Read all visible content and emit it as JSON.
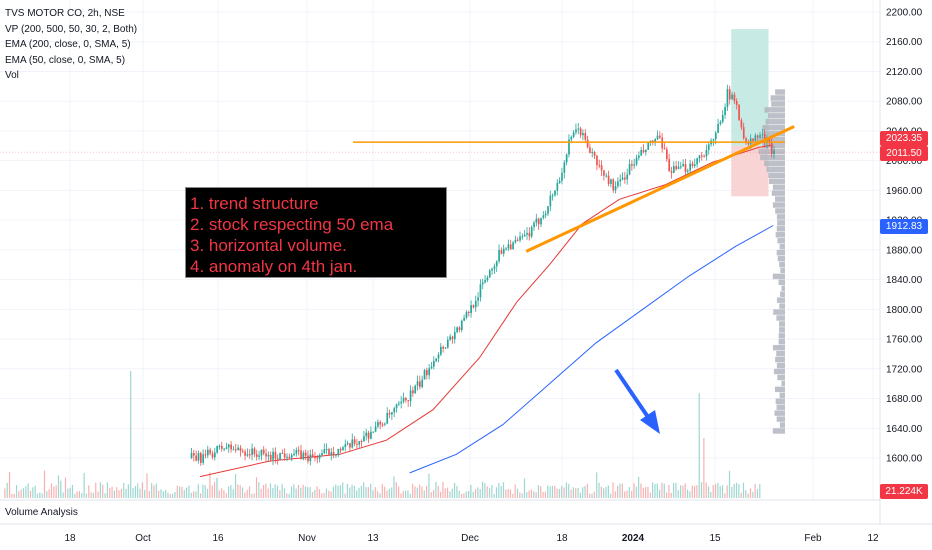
{
  "legend": {
    "symbol": "TVS MOTOR CO, 2h, NSE",
    "vp": "VP (200, 500, 50, 30, 2, Both)",
    "ema200": "EMA (200, close, 0, SMA, 5)",
    "ema50": "EMA (50, close, 0, SMA, 5)",
    "vol": "Vol"
  },
  "annotation": {
    "lines": [
      "1. trend structure",
      "2. stock respecting 50 ema",
      "3. horizontal volume.",
      "4. anomaly on 4th jan."
    ]
  },
  "panes": {
    "volume_label": "Volume Analysis"
  },
  "price_tags": {
    "last_high": "2023.35",
    "last_close": "2011.50",
    "ema200": "1912.83",
    "volume": "21.224K"
  },
  "colors": {
    "up": "#26a69a",
    "down": "#ef5350",
    "ema50": "#e53935",
    "ema200": "#2962ff",
    "trendline": "#ff9800",
    "profile": "#b2b5be",
    "arrow": "#2962ff",
    "tp_zone": "#b9e5dd",
    "sl_zone": "#f8c9cb",
    "tag_green": "#f23645"
  },
  "chart_data": {
    "type": "candlestick",
    "symbol": "TVS MOTOR CO",
    "interval": "2h",
    "exchange": "NSE",
    "y_ticks": [
      1600,
      1640,
      1680,
      1720,
      1760,
      1800,
      1840,
      1880,
      1920,
      1960,
      2000,
      2040,
      2080,
      2120,
      2160,
      2200
    ],
    "ylim": [
      1580,
      2210
    ],
    "x_ticks": [
      "18",
      "Oct",
      "16",
      "Nov",
      "13",
      "Dec",
      "18",
      "2024",
      "15",
      "Feb",
      "12"
    ],
    "price_path": [
      {
        "bar": 0,
        "price": 1600
      },
      {
        "bar": 10,
        "price": 1615
      },
      {
        "bar": 20,
        "price": 1608
      },
      {
        "bar": 30,
        "price": 1602
      },
      {
        "bar": 38,
        "price": 1607
      },
      {
        "bar": 48,
        "price": 1600
      },
      {
        "bar": 56,
        "price": 1610
      },
      {
        "bar": 62,
        "price": 1612
      },
      {
        "bar": 70,
        "price": 1628
      },
      {
        "bar": 78,
        "price": 1648
      },
      {
        "bar": 86,
        "price": 1672
      },
      {
        "bar": 94,
        "price": 1700
      },
      {
        "bar": 100,
        "price": 1735
      },
      {
        "bar": 106,
        "price": 1758
      },
      {
        "bar": 112,
        "price": 1780
      },
      {
        "bar": 118,
        "price": 1815
      },
      {
        "bar": 124,
        "price": 1852
      },
      {
        "bar": 130,
        "price": 1885
      },
      {
        "bar": 136,
        "price": 1890
      },
      {
        "bar": 142,
        "price": 1905
      },
      {
        "bar": 148,
        "price": 1935
      },
      {
        "bar": 154,
        "price": 1975
      },
      {
        "bar": 158,
        "price": 2022
      },
      {
        "bar": 162,
        "price": 2045
      },
      {
        "bar": 166,
        "price": 2020
      },
      {
        "bar": 172,
        "price": 1985
      },
      {
        "bar": 178,
        "price": 1962
      },
      {
        "bar": 184,
        "price": 1990
      },
      {
        "bar": 190,
        "price": 2012
      },
      {
        "bar": 196,
        "price": 2032
      },
      {
        "bar": 202,
        "price": 1985
      },
      {
        "bar": 208,
        "price": 1990
      },
      {
        "bar": 214,
        "price": 2005
      },
      {
        "bar": 220,
        "price": 2025
      },
      {
        "bar": 226,
        "price": 2090
      },
      {
        "bar": 230,
        "price": 2075
      },
      {
        "bar": 234,
        "price": 2020
      },
      {
        "bar": 240,
        "price": 2035
      },
      {
        "bar": 246,
        "price": 2012
      }
    ],
    "ema50_path": [
      {
        "bar": 0,
        "price": 1575
      },
      {
        "bar": 30,
        "price": 1596
      },
      {
        "bar": 60,
        "price": 1605
      },
      {
        "bar": 80,
        "price": 1624
      },
      {
        "bar": 100,
        "price": 1665
      },
      {
        "bar": 120,
        "price": 1735
      },
      {
        "bar": 136,
        "price": 1810
      },
      {
        "bar": 150,
        "price": 1860
      },
      {
        "bar": 164,
        "price": 1915
      },
      {
        "bar": 180,
        "price": 1948
      },
      {
        "bar": 200,
        "price": 1968
      },
      {
        "bar": 220,
        "price": 1998
      },
      {
        "bar": 240,
        "price": 2018
      },
      {
        "bar": 246,
        "price": 2021
      }
    ],
    "ema200_path": [
      {
        "bar": 90,
        "price": 1580
      },
      {
        "bar": 110,
        "price": 1605
      },
      {
        "bar": 130,
        "price": 1645
      },
      {
        "bar": 150,
        "price": 1700
      },
      {
        "bar": 170,
        "price": 1755
      },
      {
        "bar": 190,
        "price": 1800
      },
      {
        "bar": 210,
        "price": 1845
      },
      {
        "bar": 230,
        "price": 1885
      },
      {
        "bar": 246,
        "price": 1912.83
      }
    ],
    "horizontal_level": 2025,
    "trendline": [
      {
        "bar": 140,
        "price": 1878
      },
      {
        "bar": 255,
        "price": 2046
      }
    ],
    "long_position": {
      "from_bar": 228,
      "to_bar": 244,
      "entry": 2020,
      "target": 2177,
      "stop": 1952
    },
    "volume_spikes": [
      {
        "bar": 20,
        "volume": 1
      },
      {
        "bar": 215,
        "volume": 1
      }
    ],
    "volume_profile": "horizontal histogram on right side from 1630 to 2095"
  }
}
